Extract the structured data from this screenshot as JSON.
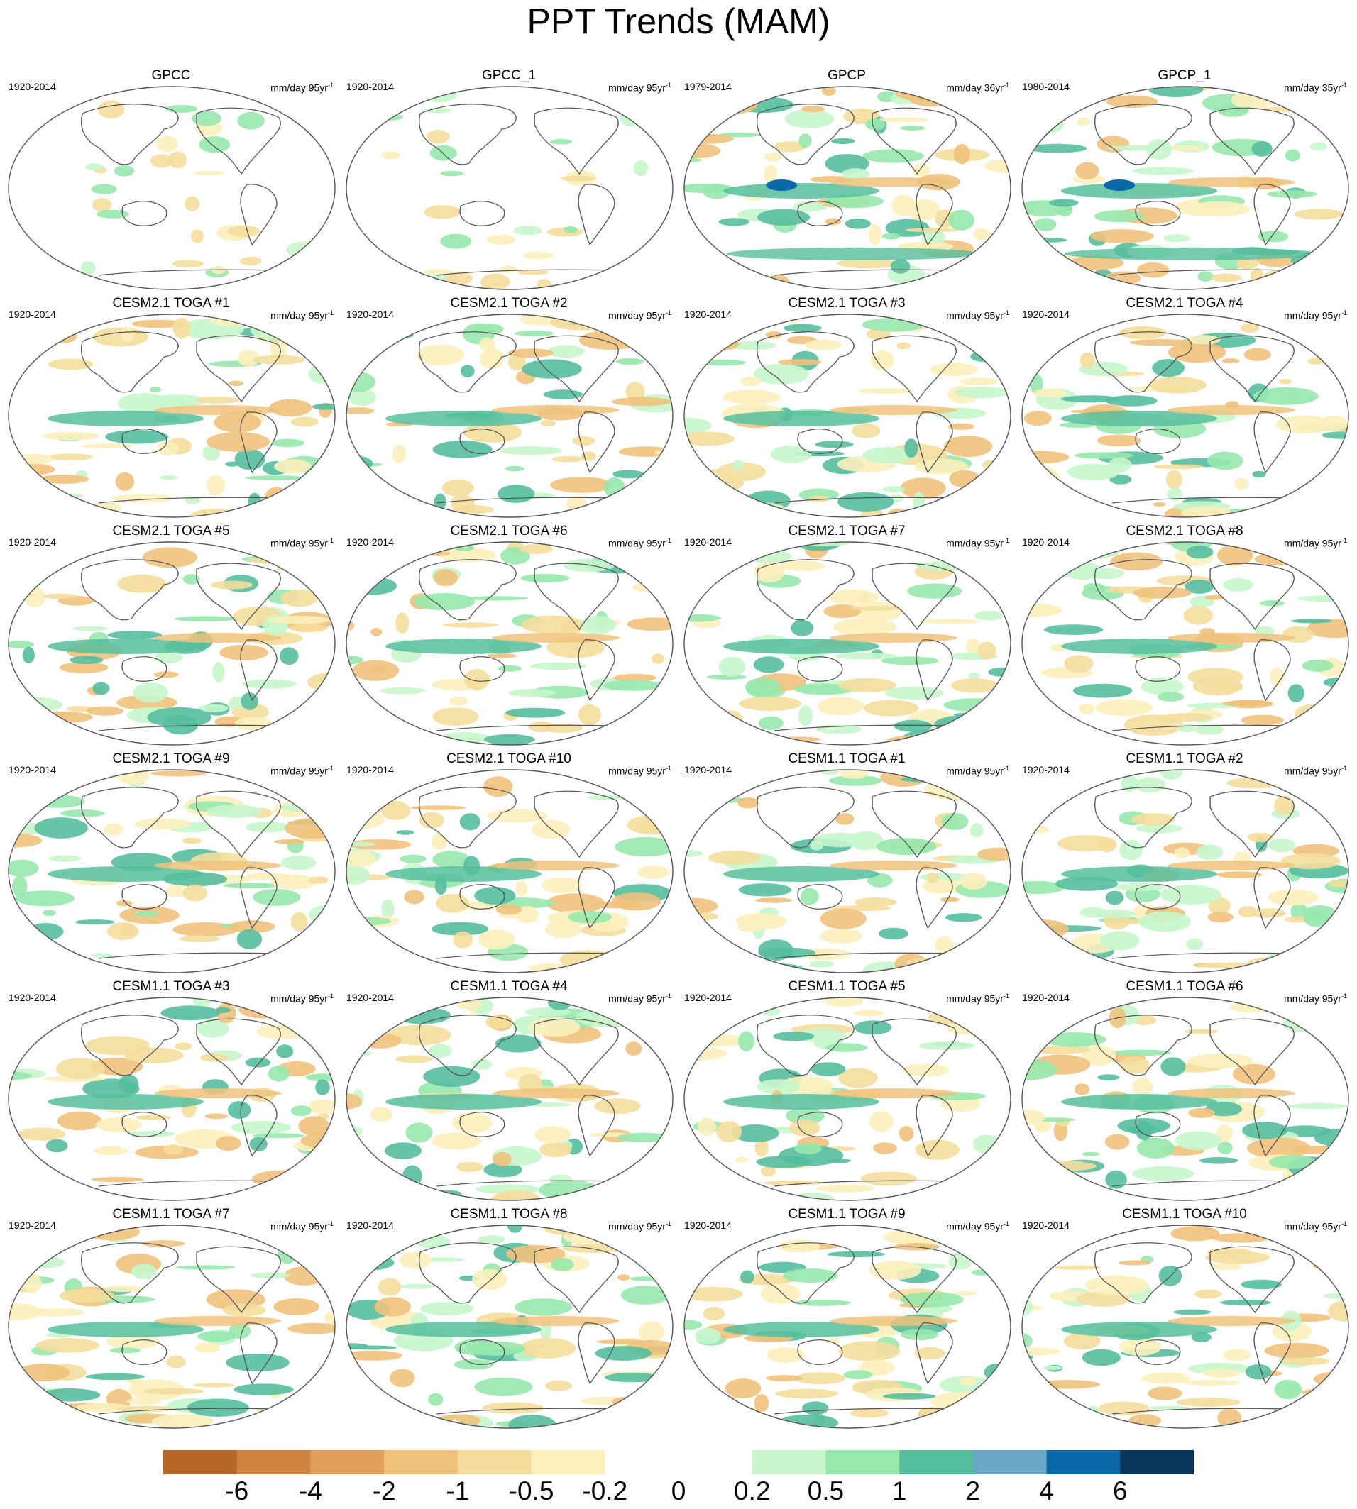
{
  "figure": {
    "title": "PPT Trends (MAM)"
  },
  "panels": [
    {
      "title": "GPCC",
      "period": "1920-2014",
      "units": "mm/day 95yr",
      "units_sup": "-1",
      "style": "obs"
    },
    {
      "title": "GPCC_1",
      "period": "1920-2014",
      "units": "mm/day 95yr",
      "units_sup": "-1",
      "style": "obs"
    },
    {
      "title": "GPCP",
      "period": "1979-2014",
      "units": "mm/day 36yr",
      "units_sup": "-1",
      "style": "gpcp"
    },
    {
      "title": "GPCP_1",
      "period": "1980-2014",
      "units": "mm/day 35yr",
      "units_sup": "-1",
      "style": "gpcp"
    },
    {
      "title": "CESM2.1 TOGA #1",
      "period": "1920-2014",
      "units": "mm/day 95yr",
      "units_sup": "-1",
      "style": "model"
    },
    {
      "title": "CESM2.1 TOGA #2",
      "period": "1920-2014",
      "units": "mm/day 95yr",
      "units_sup": "-1",
      "style": "model"
    },
    {
      "title": "CESM2.1 TOGA #3",
      "period": "1920-2014",
      "units": "mm/day 95yr",
      "units_sup": "-1",
      "style": "model"
    },
    {
      "title": "CESM2.1 TOGA #4",
      "period": "1920-2014",
      "units": "mm/day 95yr",
      "units_sup": "-1",
      "style": "model"
    },
    {
      "title": "CESM2.1 TOGA #5",
      "period": "1920-2014",
      "units": "mm/day 95yr",
      "units_sup": "-1",
      "style": "model"
    },
    {
      "title": "CESM2.1 TOGA #6",
      "period": "1920-2014",
      "units": "mm/day 95yr",
      "units_sup": "-1",
      "style": "model"
    },
    {
      "title": "CESM2.1 TOGA #7",
      "period": "1920-2014",
      "units": "mm/day 95yr",
      "units_sup": "-1",
      "style": "model"
    },
    {
      "title": "CESM2.1 TOGA #8",
      "period": "1920-2014",
      "units": "mm/day 95yr",
      "units_sup": "-1",
      "style": "model"
    },
    {
      "title": "CESM2.1 TOGA #9",
      "period": "1920-2014",
      "units": "mm/day 95yr",
      "units_sup": "-1",
      "style": "model"
    },
    {
      "title": "CESM2.1 TOGA #10",
      "period": "1920-2014",
      "units": "mm/day 95yr",
      "units_sup": "-1",
      "style": "model"
    },
    {
      "title": "CESM1.1 TOGA #1",
      "period": "1920-2014",
      "units": "mm/day 95yr",
      "units_sup": "-1",
      "style": "model"
    },
    {
      "title": "CESM1.1 TOGA #2",
      "period": "1920-2014",
      "units": "mm/day 95yr",
      "units_sup": "-1",
      "style": "model"
    },
    {
      "title": "CESM1.1 TOGA #3",
      "period": "1920-2014",
      "units": "mm/day 95yr",
      "units_sup": "-1",
      "style": "model"
    },
    {
      "title": "CESM1.1 TOGA #4",
      "period": "1920-2014",
      "units": "mm/day 95yr",
      "units_sup": "-1",
      "style": "model"
    },
    {
      "title": "CESM1.1 TOGA #5",
      "period": "1920-2014",
      "units": "mm/day 95yr",
      "units_sup": "-1",
      "style": "model"
    },
    {
      "title": "CESM1.1 TOGA #6",
      "period": "1920-2014",
      "units": "mm/day 95yr",
      "units_sup": "-1",
      "style": "model"
    },
    {
      "title": "CESM1.1 TOGA #7",
      "period": "1920-2014",
      "units": "mm/day 95yr",
      "units_sup": "-1",
      "style": "model"
    },
    {
      "title": "CESM1.1 TOGA #8",
      "period": "1920-2014",
      "units": "mm/day 95yr",
      "units_sup": "-1",
      "style": "model"
    },
    {
      "title": "CESM1.1 TOGA #9",
      "period": "1920-2014",
      "units": "mm/day 95yr",
      "units_sup": "-1",
      "style": "model"
    },
    {
      "title": "CESM1.1 TOGA #10",
      "period": "1920-2014",
      "units": "mm/day 95yr",
      "units_sup": "-1",
      "style": "model"
    }
  ],
  "colorbar": {
    "colors": [
      "#b5682a",
      "#cd853f",
      "#dea05c",
      "#efc27c",
      "#f4dd9c",
      "#fbf0bc",
      "#ffffff",
      "#ffffff",
      "#c7f6cc",
      "#97e8ad",
      "#56be9e",
      "#6aa6c8",
      "#0a6aa8",
      "#08365a"
    ],
    "labels": [
      "-6",
      "-4",
      "-2",
      "-1",
      "-0.5",
      "-0.2",
      "0",
      "0.2",
      "0.5",
      "1",
      "2",
      "4",
      "6"
    ]
  }
}
